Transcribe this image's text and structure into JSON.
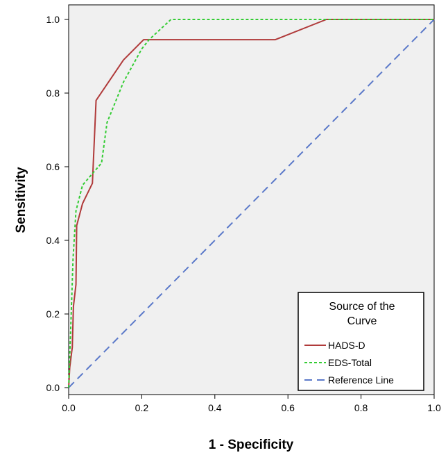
{
  "chart_data": {
    "type": "line",
    "title": "",
    "xlabel": "1 - Specificity",
    "ylabel": "Sensitivity",
    "xlim": [
      0.0,
      1.0
    ],
    "ylim": [
      0.0,
      1.0
    ],
    "x_ticks": [
      "0.0",
      "0.2",
      "0.4",
      "0.6",
      "0.8",
      "1.0"
    ],
    "y_ticks": [
      "0.0",
      "0.2",
      "0.4",
      "0.6",
      "0.8",
      "1.0"
    ],
    "grid": false,
    "background": "#f0f0f0",
    "legend": {
      "title": "Source of the Curve",
      "title_lines": [
        "Source of the",
        "Curve"
      ],
      "placement": "bottom-right"
    },
    "series": [
      {
        "name": "HADS-D",
        "color": "#b03a3a",
        "dash": "solid",
        "points": [
          [
            0.0,
            0.0
          ],
          [
            0.003,
            0.055
          ],
          [
            0.01,
            0.11
          ],
          [
            0.013,
            0.22
          ],
          [
            0.02,
            0.28
          ],
          [
            0.022,
            0.44
          ],
          [
            0.038,
            0.5
          ],
          [
            0.065,
            0.555
          ],
          [
            0.075,
            0.78
          ],
          [
            0.15,
            0.89
          ],
          [
            0.205,
            0.945
          ],
          [
            0.565,
            0.945
          ],
          [
            0.705,
            1.0
          ],
          [
            1.0,
            1.0
          ]
        ]
      },
      {
        "name": "EDS-Total",
        "color": "#33cc33",
        "dash": "dotted",
        "points": [
          [
            0.0,
            0.0
          ],
          [
            0.007,
            0.2
          ],
          [
            0.012,
            0.35
          ],
          [
            0.02,
            0.48
          ],
          [
            0.038,
            0.55
          ],
          [
            0.09,
            0.61
          ],
          [
            0.105,
            0.72
          ],
          [
            0.15,
            0.83
          ],
          [
            0.2,
            0.92
          ],
          [
            0.22,
            0.945
          ],
          [
            0.28,
            1.0
          ],
          [
            1.0,
            1.0
          ]
        ]
      },
      {
        "name": "Reference Line",
        "color": "#5b79c9",
        "dash": "dashed",
        "points": [
          [
            0.0,
            0.0
          ],
          [
            1.0,
            1.0
          ]
        ]
      }
    ]
  }
}
